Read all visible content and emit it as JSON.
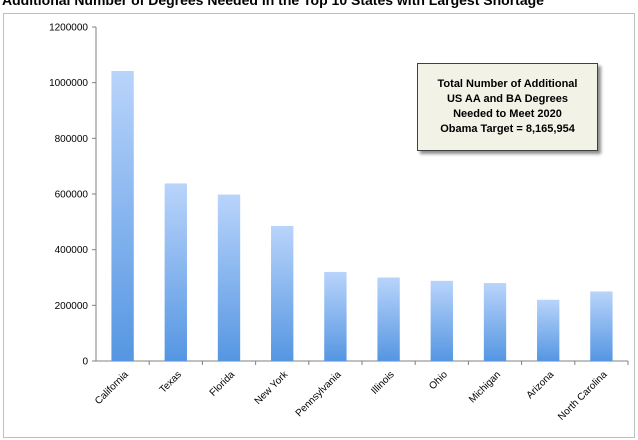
{
  "chart_data": {
    "type": "bar",
    "title": "Additional Number of Degrees Needed in the Top 10 States with Largest Shortage",
    "categories": [
      "California",
      "Texas",
      "Florida",
      "New York",
      "Pennsylvania",
      "Illinois",
      "Ohio",
      "Michigan",
      "Arizona",
      "North Carolina"
    ],
    "values": [
      1042000,
      638000,
      598000,
      485000,
      320000,
      300000,
      288000,
      280000,
      220000,
      250000
    ],
    "ylim": [
      0,
      1200000
    ],
    "yticks": [
      "0",
      "200000",
      "400000",
      "600000",
      "800000",
      "1000000",
      "1200000"
    ],
    "grid": false,
    "colors": {
      "bar_top": "#b9d4fb",
      "bar_bottom": "#5596e2"
    },
    "annotation": {
      "lines": [
        "Total Number of Additional",
        "US AA and BA Degrees",
        "Needed to Meet 2020",
        "Obama Target = 8,165,954"
      ]
    }
  }
}
